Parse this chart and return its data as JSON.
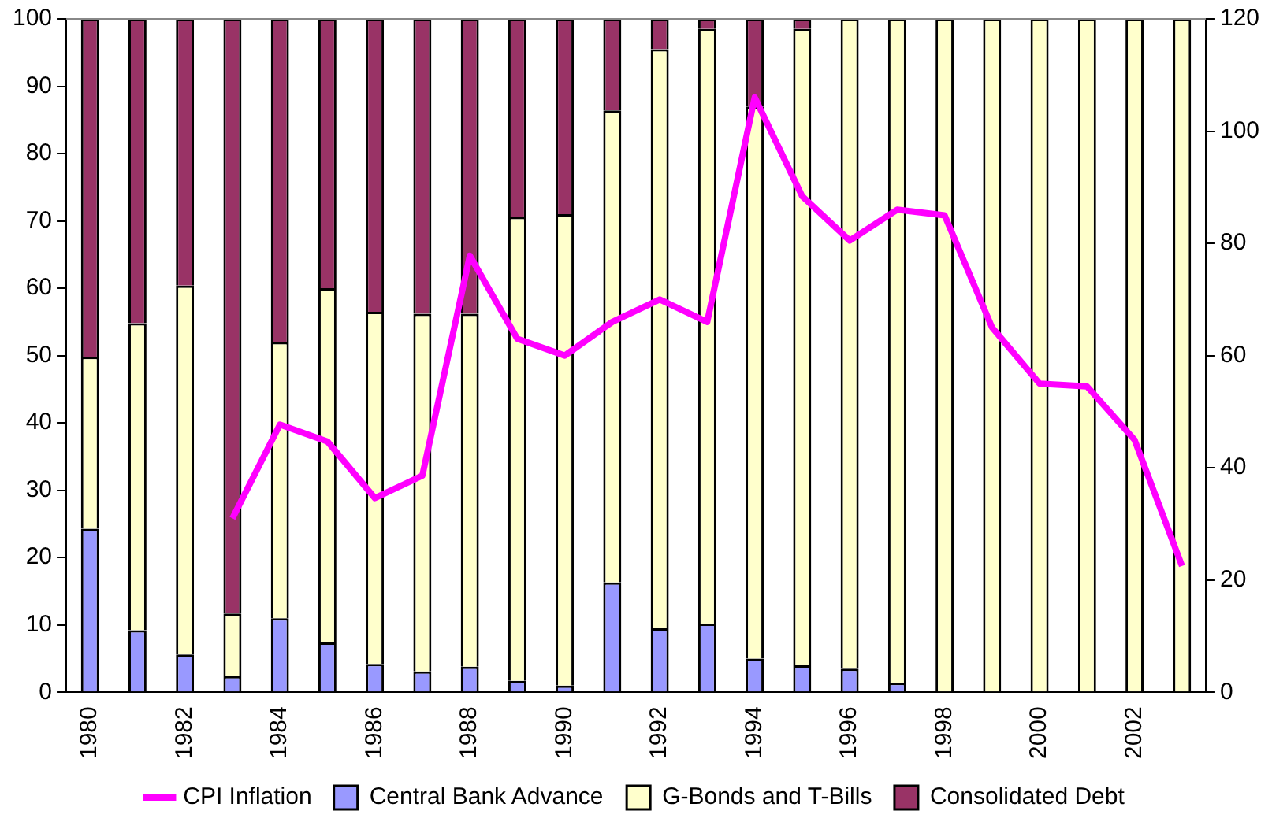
{
  "chart_data": {
    "type": "bar",
    "stacked": true,
    "categories": [
      "1980",
      null,
      "1982",
      null,
      "1984",
      null,
      "1986",
      null,
      "1988",
      null,
      "1990",
      null,
      "1992",
      null,
      "1994",
      null,
      "1996",
      null,
      "1998",
      null,
      "2000",
      null,
      "2002",
      null
    ],
    "series": [
      {
        "name": "Central Bank Advance",
        "color": "#9999ff",
        "values": [
          24.3,
          9.2,
          5.6,
          2.4,
          11,
          7.4,
          4.2,
          3.1,
          3.8,
          1.7,
          1,
          16.3,
          9.5,
          10.2,
          5,
          4,
          3.5,
          1.4,
          0,
          0,
          0,
          0,
          0,
          0
        ]
      },
      {
        "name": "G-Bonds and T-Bills",
        "color": "#ffffcc",
        "values": [
          25.5,
          45.6,
          54.8,
          9.3,
          41,
          52.6,
          52.3,
          53.1,
          52.4,
          68.9,
          70,
          70.1,
          86,
          88.3,
          82,
          94.5,
          96.5,
          98.6,
          100,
          100,
          100,
          100,
          100,
          100
        ]
      },
      {
        "name": "Consolidated Debt",
        "color": "#993366",
        "values": [
          50.2,
          45.2,
          39.6,
          88.3,
          48,
          40,
          43.5,
          43.8,
          43.8,
          29.4,
          29,
          13.6,
          4.5,
          1.5,
          13,
          1.5,
          0,
          0,
          0,
          0,
          0,
          0,
          0,
          0
        ]
      },
      {
        "name": "CPI Inflation",
        "type": "line",
        "axis": "y2",
        "color": "#ff00ff",
        "values": [
          null,
          null,
          null,
          31,
          47.7,
          44.7,
          34.6,
          38.6,
          77.8,
          63,
          60,
          66,
          70,
          66,
          106,
          88.4,
          80.5,
          86,
          85,
          65,
          55,
          54.5,
          45,
          22.5
        ]
      }
    ],
    "ylim": [
      0,
      100
    ],
    "yticks": [
      0,
      10,
      20,
      30,
      40,
      50,
      60,
      70,
      80,
      90,
      100
    ],
    "y2lim": [
      0,
      120
    ],
    "y2ticks": [
      0,
      20,
      40,
      60,
      80,
      100,
      120
    ],
    "grid": false,
    "legend": "bottom",
    "marker": "none"
  }
}
